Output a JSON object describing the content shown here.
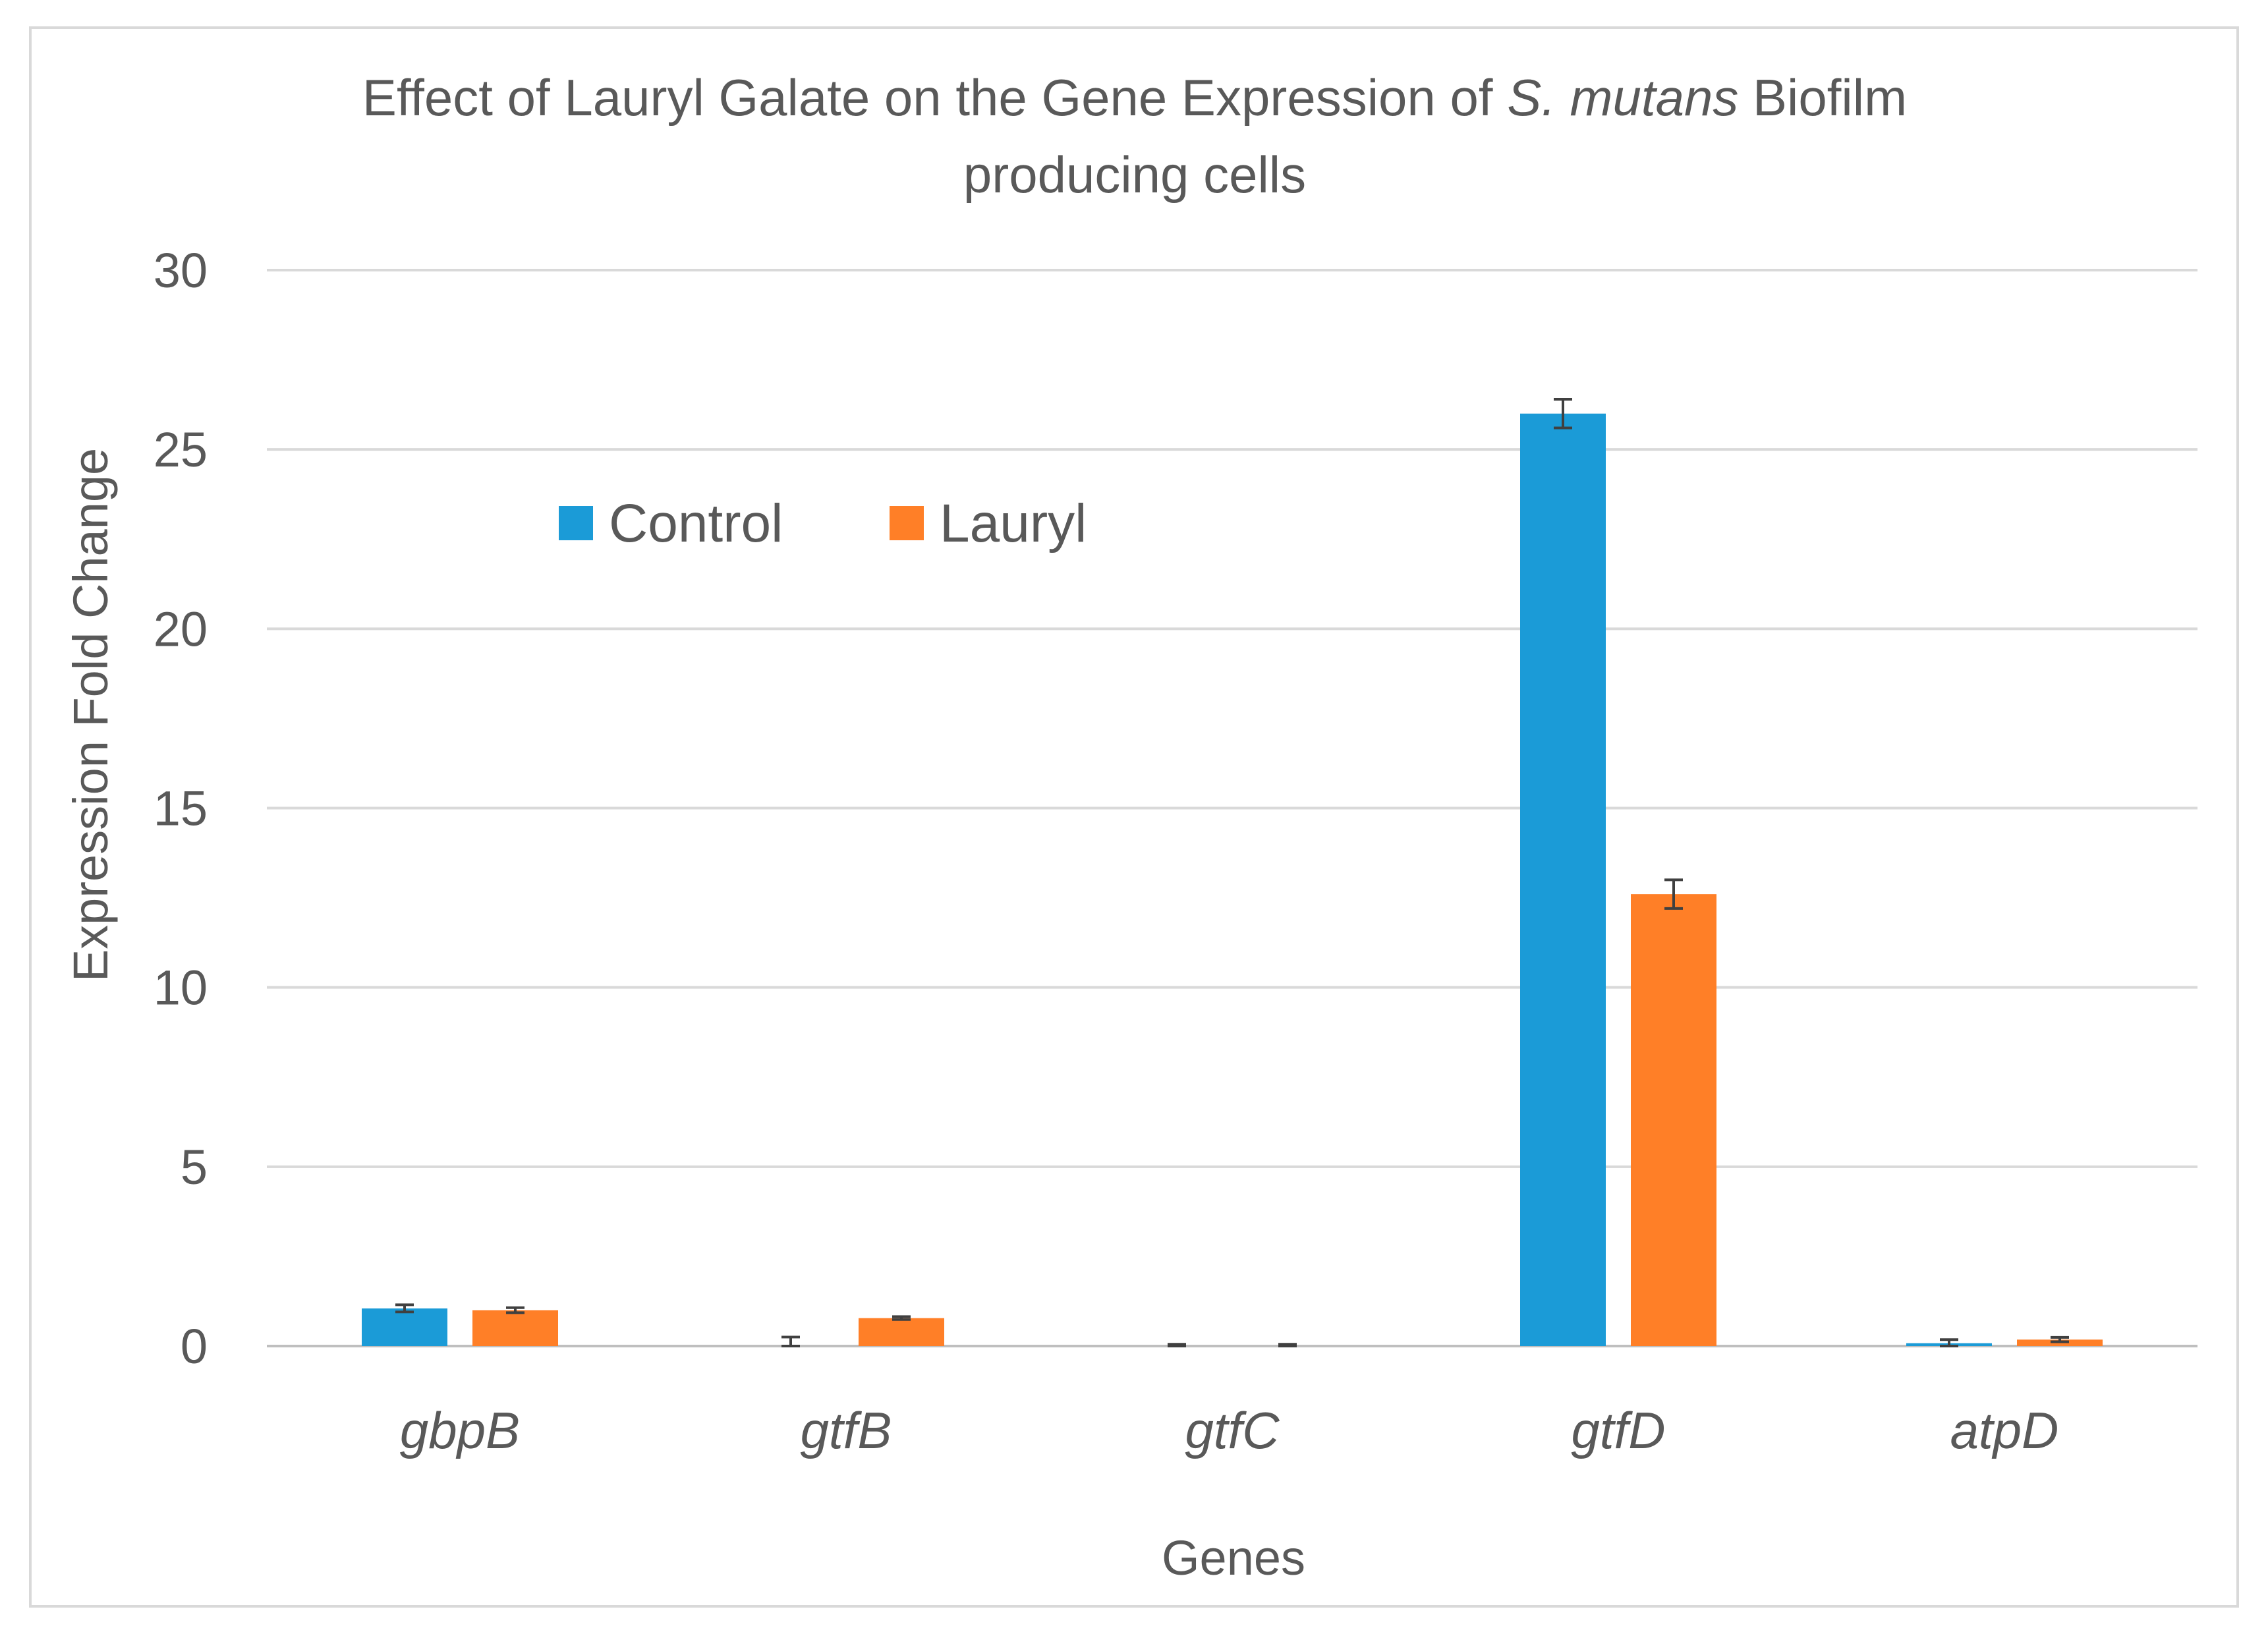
{
  "chart_data": {
    "type": "bar",
    "title": {
      "line1_pre": "Effect of Lauryl Galate on the Gene Expression of ",
      "line1_italic": "S. mutans",
      "line1_post": " Biofilm",
      "line2": "producing cells"
    },
    "xlabel": "Genes",
    "ylabel": "Expression Fold Change",
    "ylim": [
      0,
      30
    ],
    "yticks": [
      "0",
      "5",
      "10",
      "15",
      "20",
      "25",
      "30"
    ],
    "grid": true,
    "legend_position": "top-left",
    "categories": [
      "gbpB",
      "gtfB",
      "gtfC",
      "gtfD",
      "atpD"
    ],
    "series": [
      {
        "name": "Control",
        "color": "#1b9bd7",
        "values": [
          1.05,
          0.0,
          0.0,
          26.0,
          0.08
        ],
        "errors": [
          0.1,
          0.25,
          0.05,
          0.4,
          0.1
        ]
      },
      {
        "name": "Lauryl",
        "color": "#ff7f27",
        "values": [
          1.0,
          0.78,
          0.0,
          12.6,
          0.18
        ],
        "errors": [
          0.07,
          0.04,
          0.05,
          0.4,
          0.06
        ]
      }
    ],
    "grid_color": "#d9d9d9",
    "axis_color": "#bfbfbf",
    "error_bar_color": "#404040"
  }
}
